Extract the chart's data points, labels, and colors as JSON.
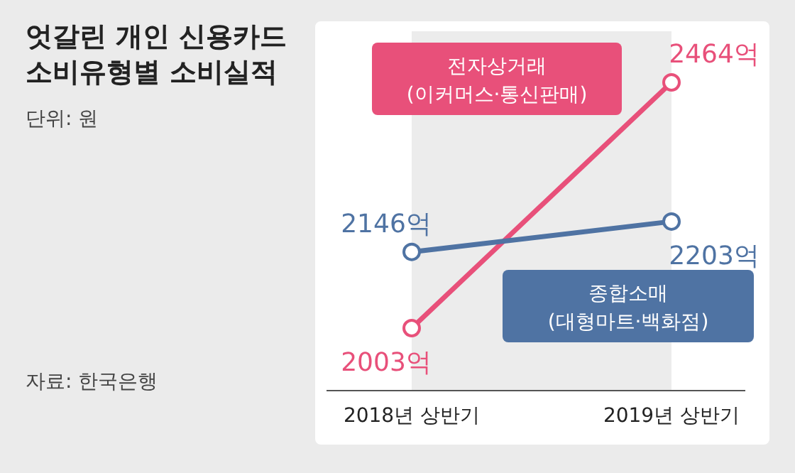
{
  "chart_data": {
    "type": "line",
    "title": "엇갈린 개인 신용카드\n소비유형별 소비실적",
    "subtitle": "단위: 원",
    "annotations": [
      "자료: 한국은행"
    ],
    "categories": [
      "2018년 상반기",
      "2019년 상반기"
    ],
    "marker": "circle",
    "legend": false,
    "bands": [
      {
        "axis": "x",
        "from": "2018년 상반기",
        "to": "2019년 상반기",
        "color": "#ececec"
      }
    ],
    "series": [
      {
        "name": "전자상거래\n(이커머스·통신판매)",
        "color": "#e8507a",
        "values": [
          2003,
          2464
        ],
        "value_labels": [
          "2003억",
          "2464억"
        ]
      },
      {
        "name": "종합소매\n(대형마트·백화점)",
        "color": "#4f73a3",
        "values": [
          2146,
          2203
        ],
        "value_labels": [
          "2146억",
          "2203억"
        ]
      }
    ]
  }
}
